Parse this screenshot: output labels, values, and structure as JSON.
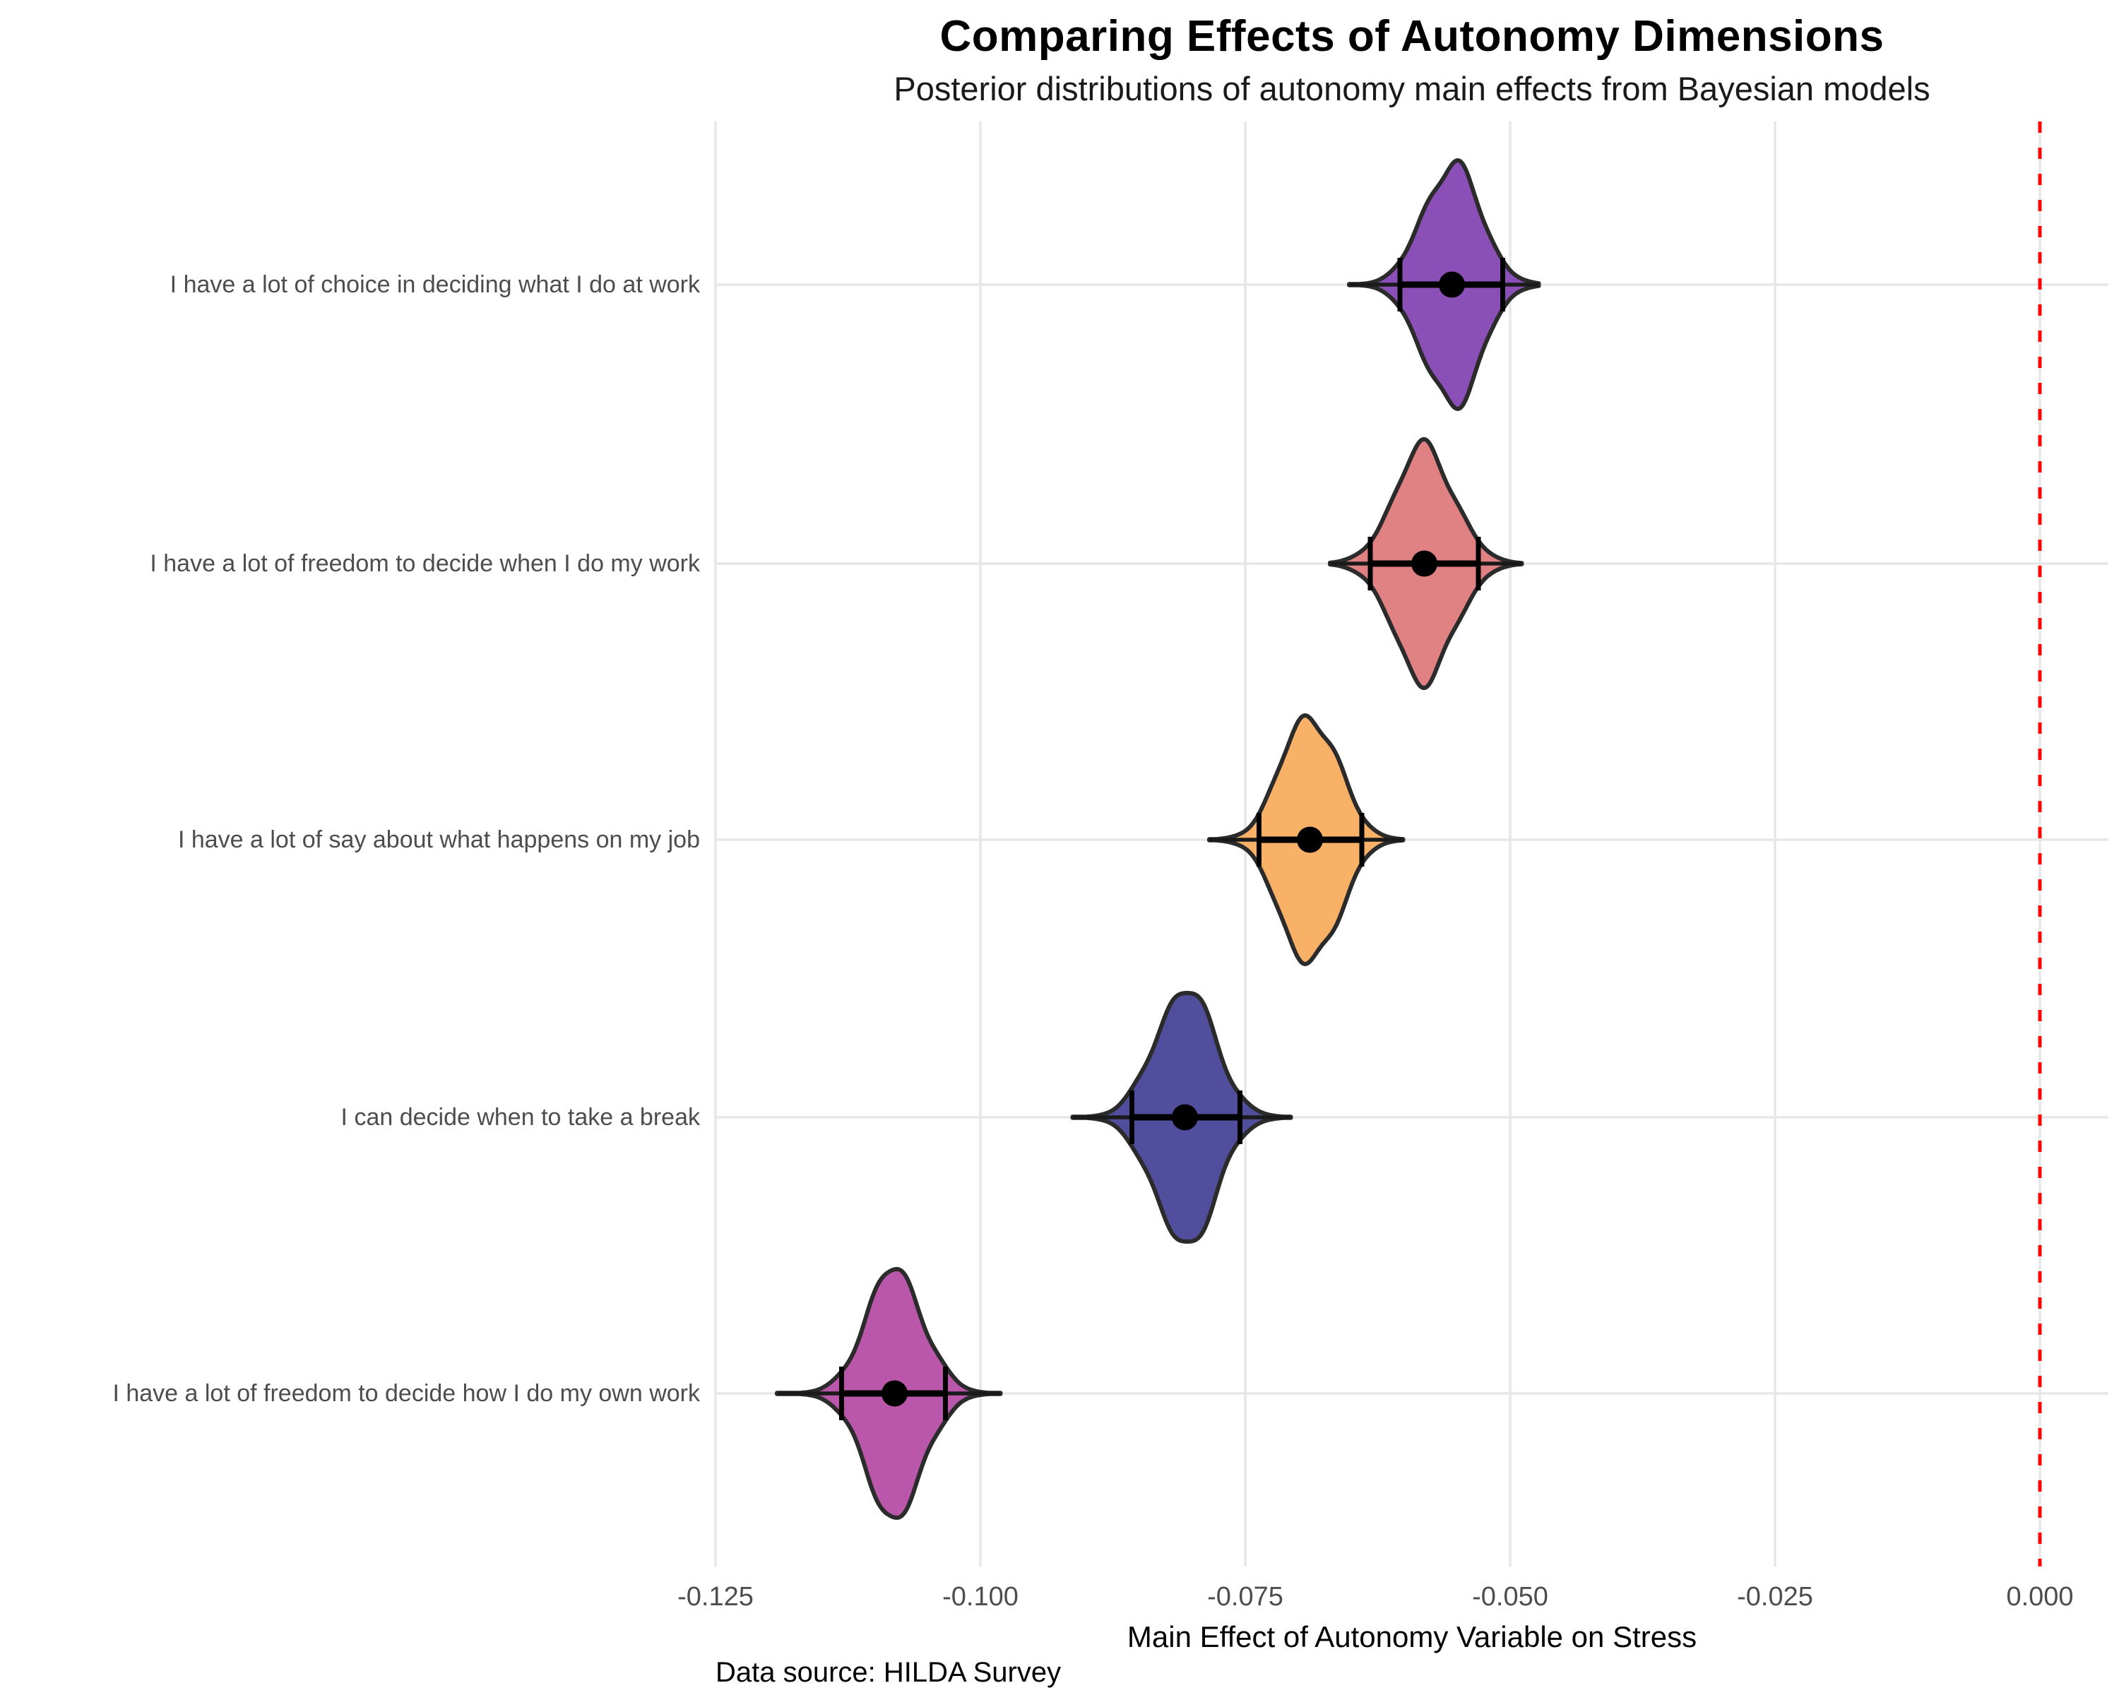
{
  "chart_data": {
    "type": "violin",
    "orientation": "horizontal",
    "title": "Comparing Effects of Autonomy Dimensions",
    "subtitle": "Posterior distributions of autonomy main effects from Bayesian models",
    "xlabel": "Main Effect of Autonomy Variable on Stress",
    "ylabel": "",
    "caption": "Data source: HILDA Survey",
    "background_color": "#FFFFFF",
    "grid": "major-only",
    "gridline_color": "#E7E7E7",
    "xlim": [
      -0.1265,
      0.0065
    ],
    "x_ticks": [
      {
        "label": "-0.125",
        "value": -0.125
      },
      {
        "label": "-0.100",
        "value": -0.1
      },
      {
        "label": "-0.075",
        "value": -0.075
      },
      {
        "label": "-0.050",
        "value": -0.05
      },
      {
        "label": "-0.025",
        "value": -0.025
      },
      {
        "label": "0.000",
        "value": 0.0
      }
    ],
    "reference_line": {
      "value": 0.0,
      "color": "#FF0000",
      "style": "dashed"
    },
    "categories": [
      "I have a lot of choice in deciding what I do at work",
      "I have a lot of freedom to decide when I do my work",
      "I have a lot of say about what happens on my job",
      "I can decide when to take a break",
      "I have a lot of freedom to decide how I do my own work"
    ],
    "series": [
      {
        "category": "I have a lot of choice in deciding what I do at work",
        "fill_color": "#8A50B8",
        "mean": -0.0555,
        "interval_low": -0.0604,
        "interval_high": -0.0507,
        "dist_min": -0.0652,
        "dist_max": -0.0473
      },
      {
        "category": "I have a lot of freedom to decide when I do my work",
        "fill_color": "#E08183",
        "mean": -0.0581,
        "interval_low": -0.0632,
        "interval_high": -0.053,
        "dist_min": -0.067,
        "dist_max": -0.0489
      },
      {
        "category": "I have a lot of say about what happens on my job",
        "fill_color": "#F8B167",
        "mean": -0.0689,
        "interval_low": -0.0737,
        "interval_high": -0.064,
        "dist_min": -0.0784,
        "dist_max": -0.0601
      },
      {
        "category": "I can decide when to take a break",
        "fill_color": "#514F9D",
        "mean": -0.0807,
        "interval_low": -0.0857,
        "interval_high": -0.0755,
        "dist_min": -0.0913,
        "dist_max": -0.0707
      },
      {
        "category": "I have a lot of freedom to decide how I do my own work",
        "fill_color": "#BB57AA",
        "mean": -0.1081,
        "interval_low": -0.1131,
        "interval_high": -0.1033,
        "dist_min": -0.1192,
        "dist_max": -0.0981
      }
    ]
  }
}
